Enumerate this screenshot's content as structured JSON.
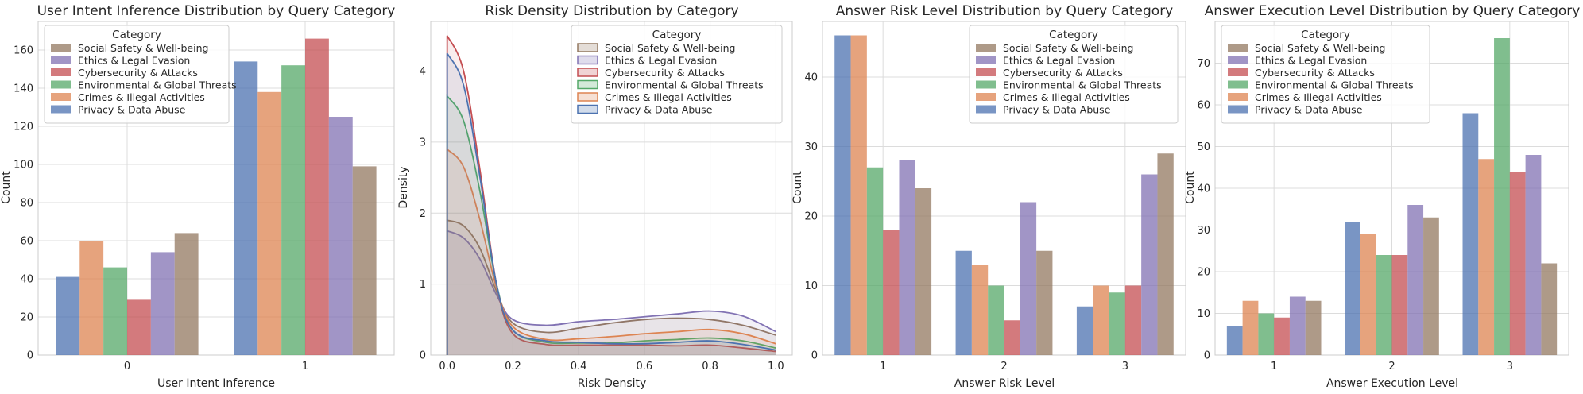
{
  "legend": {
    "title": "Category",
    "entries": [
      "Social Safety & Well-being",
      "Ethics & Legal Evasion",
      "Cybersecurity & Attacks",
      "Environmental & Global Threats",
      "Crimes & Illegal Activities",
      "Privacy & Data Abuse"
    ]
  },
  "colors": {
    "Privacy & Data Abuse": "#4c72b0",
    "Crimes & Illegal Activities": "#dd8452",
    "Environmental & Global Threats": "#55a868",
    "Cybersecurity & Attacks": "#c44e52",
    "Ethics & Legal Evasion": "#8172b3",
    "Social Safety & Well-being": "#937860"
  },
  "chart_data": [
    {
      "type": "bar",
      "title": "User Intent Inference Distribution by Query Category",
      "xlabel": "User Intent Inference",
      "ylabel": "Count",
      "categories": [
        "0",
        "1"
      ],
      "ylim": [
        0,
        175
      ],
      "yticks": [
        0,
        20,
        40,
        60,
        80,
        100,
        120,
        140,
        160
      ],
      "grid": true,
      "legend_position": "top-left",
      "series": [
        {
          "name": "Privacy & Data Abuse",
          "values": [
            41,
            154
          ]
        },
        {
          "name": "Crimes & Illegal Activities",
          "values": [
            60,
            138
          ]
        },
        {
          "name": "Environmental & Global Threats",
          "values": [
            46,
            152
          ]
        },
        {
          "name": "Cybersecurity & Attacks",
          "values": [
            29,
            166
          ]
        },
        {
          "name": "Ethics & Legal Evasion",
          "values": [
            54,
            125
          ]
        },
        {
          "name": "Social Safety & Well-being",
          "values": [
            64,
            99
          ]
        }
      ]
    },
    {
      "type": "area",
      "title": "Risk Density Distribution by Category",
      "xlabel": "Risk Density",
      "ylabel": "Density",
      "xlim": [
        -0.05,
        1.05
      ],
      "ylim": [
        0,
        4.7
      ],
      "xticks": [
        0.0,
        0.2,
        0.4,
        0.6,
        0.8,
        1.0
      ],
      "yticks": [
        0,
        1,
        2,
        3,
        4
      ],
      "grid": true,
      "legend_position": "top-right",
      "series": [
        {
          "name": "Social Safety & Well-being",
          "x": [
            0,
            0.05,
            0.1,
            0.15,
            0.2,
            0.3,
            0.4,
            0.5,
            0.6,
            0.7,
            0.8,
            0.9,
            1.0
          ],
          "y": [
            1.9,
            1.82,
            1.5,
            0.9,
            0.45,
            0.32,
            0.38,
            0.45,
            0.5,
            0.52,
            0.5,
            0.42,
            0.28
          ]
        },
        {
          "name": "Ethics & Legal Evasion",
          "x": [
            0,
            0.05,
            0.1,
            0.15,
            0.2,
            0.3,
            0.4,
            0.5,
            0.6,
            0.7,
            0.8,
            0.9,
            1.0
          ],
          "y": [
            1.75,
            1.65,
            1.35,
            0.85,
            0.5,
            0.42,
            0.47,
            0.5,
            0.54,
            0.58,
            0.62,
            0.55,
            0.33
          ]
        },
        {
          "name": "Cybersecurity & Attacks",
          "x": [
            0,
            0.05,
            0.1,
            0.15,
            0.2,
            0.3,
            0.4,
            0.5,
            0.6,
            0.7,
            0.8,
            0.9,
            1.0
          ],
          "y": [
            4.5,
            4.0,
            2.6,
            1.0,
            0.3,
            0.15,
            0.14,
            0.14,
            0.14,
            0.13,
            0.14,
            0.1,
            0.05
          ]
        },
        {
          "name": "Environmental & Global Threats",
          "x": [
            0,
            0.05,
            0.1,
            0.15,
            0.2,
            0.3,
            0.4,
            0.5,
            0.6,
            0.7,
            0.8,
            0.9,
            1.0
          ],
          "y": [
            3.65,
            3.3,
            2.3,
            1.0,
            0.35,
            0.18,
            0.17,
            0.17,
            0.2,
            0.22,
            0.24,
            0.2,
            0.1
          ]
        },
        {
          "name": "Crimes & Illegal Activities",
          "x": [
            0,
            0.05,
            0.1,
            0.15,
            0.2,
            0.3,
            0.4,
            0.5,
            0.6,
            0.7,
            0.8,
            0.9,
            1.0
          ],
          "y": [
            2.9,
            2.65,
            1.9,
            0.95,
            0.4,
            0.22,
            0.23,
            0.26,
            0.3,
            0.33,
            0.36,
            0.3,
            0.16
          ]
        },
        {
          "name": "Privacy & Data Abuse",
          "x": [
            0,
            0.05,
            0.1,
            0.15,
            0.2,
            0.3,
            0.4,
            0.5,
            0.6,
            0.7,
            0.8,
            0.9,
            1.0
          ],
          "y": [
            4.25,
            3.8,
            2.5,
            1.0,
            0.35,
            0.2,
            0.18,
            0.16,
            0.16,
            0.18,
            0.2,
            0.15,
            0.07
          ]
        }
      ]
    },
    {
      "type": "bar",
      "title": "Answer Risk Level Distribution by Query Category",
      "xlabel": "Answer Risk Level",
      "ylabel": "Count",
      "categories": [
        "1",
        "2",
        "3"
      ],
      "ylim": [
        0,
        48
      ],
      "yticks": [
        0,
        10,
        20,
        30,
        40
      ],
      "grid": true,
      "legend_position": "top-right",
      "series": [
        {
          "name": "Privacy & Data Abuse",
          "values": [
            46,
            15,
            7
          ]
        },
        {
          "name": "Crimes & Illegal Activities",
          "values": [
            46,
            13,
            10
          ]
        },
        {
          "name": "Environmental & Global Threats",
          "values": [
            27,
            10,
            9
          ]
        },
        {
          "name": "Cybersecurity & Attacks",
          "values": [
            18,
            5,
            10
          ]
        },
        {
          "name": "Ethics & Legal Evasion",
          "values": [
            28,
            22,
            26
          ]
        },
        {
          "name": "Social Safety & Well-being",
          "values": [
            24,
            15,
            29
          ]
        }
      ]
    },
    {
      "type": "bar",
      "title": "Answer Execution Level Distribution by Query Category",
      "xlabel": "Answer Execution Level",
      "ylabel": "Count",
      "categories": [
        "1",
        "2",
        "3"
      ],
      "ylim": [
        0,
        80
      ],
      "yticks": [
        0,
        10,
        20,
        30,
        40,
        50,
        60,
        70
      ],
      "grid": true,
      "legend_position": "top-left",
      "series": [
        {
          "name": "Privacy & Data Abuse",
          "values": [
            7,
            32,
            58
          ]
        },
        {
          "name": "Crimes & Illegal Activities",
          "values": [
            13,
            29,
            47
          ]
        },
        {
          "name": "Environmental & Global Threats",
          "values": [
            10,
            24,
            76
          ]
        },
        {
          "name": "Cybersecurity & Attacks",
          "values": [
            9,
            24,
            44
          ]
        },
        {
          "name": "Ethics & Legal Evasion",
          "values": [
            14,
            36,
            48
          ]
        },
        {
          "name": "Social Safety & Well-being",
          "values": [
            13,
            33,
            22
          ]
        }
      ]
    }
  ]
}
